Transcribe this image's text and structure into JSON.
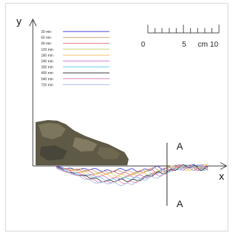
{
  "axes": {
    "y_label": "y",
    "x_label": "x"
  },
  "scale_bar": {
    "ticks": [
      "0",
      "5",
      "cm 10"
    ]
  },
  "section_marker": {
    "top_label": "A",
    "bottom_label": "A"
  },
  "legend": {
    "items": [
      {
        "label": "30 min",
        "color": "#3a3ad6"
      },
      {
        "label": "60 min",
        "color": "#c8a070"
      },
      {
        "label": "90 min",
        "color": "#e07070"
      },
      {
        "label": "120 min",
        "color": "#c8d060"
      },
      {
        "label": "180 min",
        "color": "#f0c070"
      },
      {
        "label": "240 min",
        "color": "#d070d0"
      },
      {
        "label": "300 min",
        "color": "#60c8f0"
      },
      {
        "label": "400 min",
        "color": "#303030"
      },
      {
        "label": "540 min",
        "color": "#e080b0"
      },
      {
        "label": "720 min",
        "color": "#a0b8e0"
      }
    ]
  },
  "colors": {
    "frame_border": "#cfcfcf",
    "axis": "#333333",
    "rock_dark": "#4c4a3a",
    "rock_light": "#8a8468"
  }
}
